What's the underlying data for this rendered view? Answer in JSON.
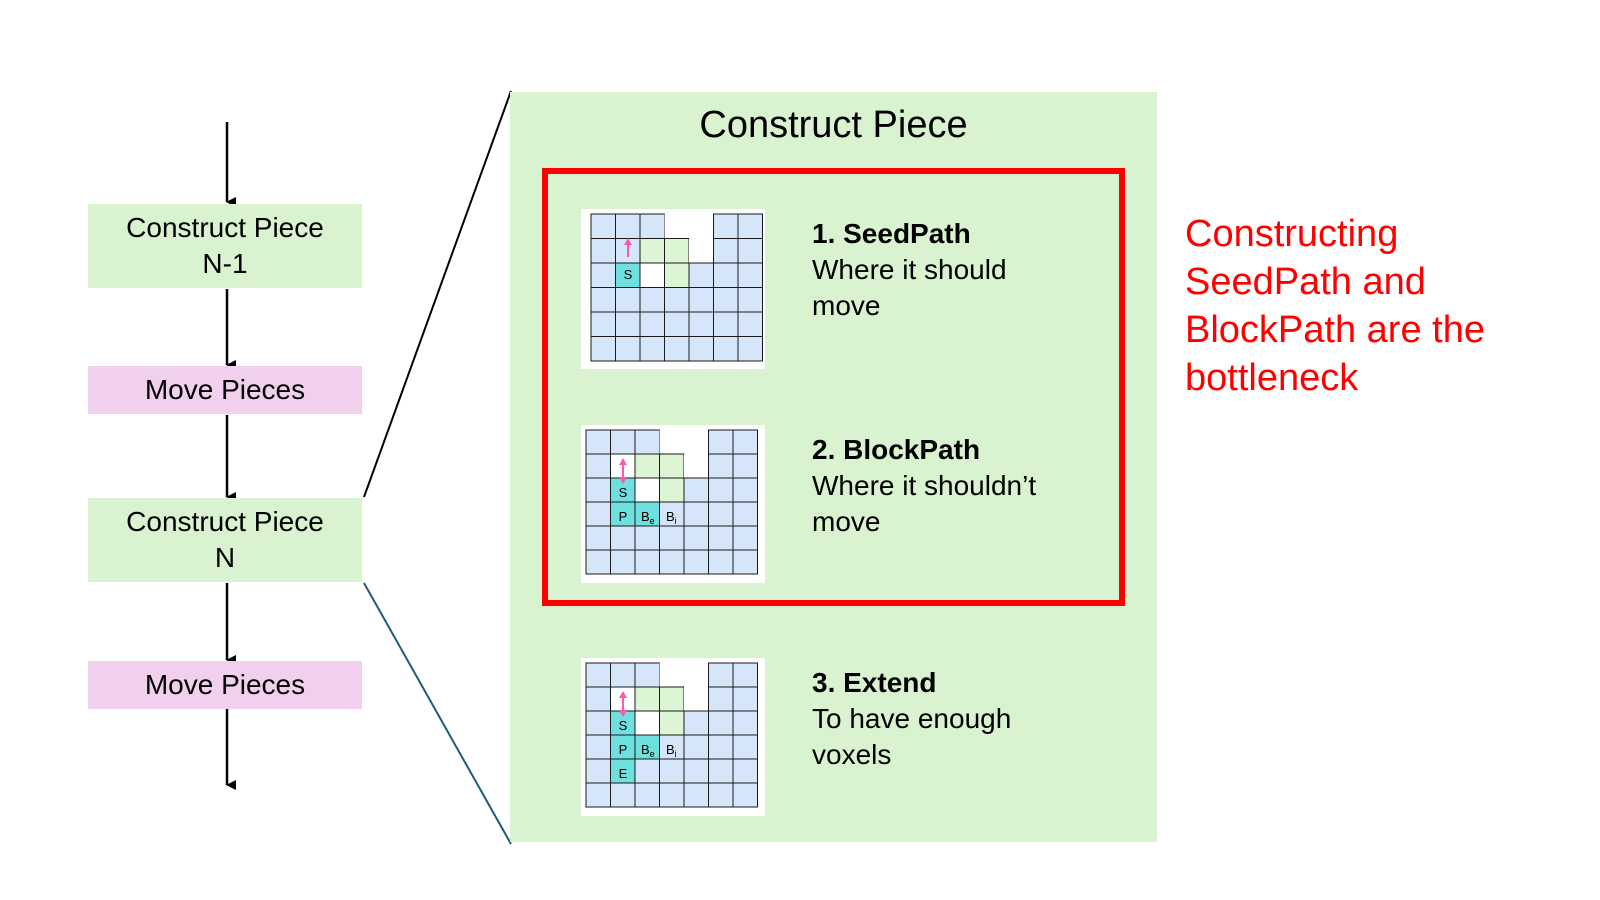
{
  "flow": [
    {
      "label": "Construct Piece\nN-1",
      "kind": "construct"
    },
    {
      "label": "Move Pieces",
      "kind": "move"
    },
    {
      "label": "Construct Piece\nN",
      "kind": "construct"
    },
    {
      "label": "Move Pieces",
      "kind": "move"
    }
  ],
  "panel": {
    "title": "Construct Piece",
    "steps": [
      {
        "title": "1. SeedPath",
        "desc_line1": "Where it should",
        "desc_line2": "move"
      },
      {
        "title": "2. BlockPath",
        "desc_line1": "Where it shouldn’t",
        "desc_line2": "move"
      },
      {
        "title": "3. Extend",
        "desc_line1": "To have enough",
        "desc_line2": "voxels"
      }
    ]
  },
  "callout": {
    "line1": "Constructing",
    "line2": "SeedPath and",
    "line3": "BlockPath are the",
    "line4": "bottleneck"
  },
  "grid_labels": {
    "seed": "S",
    "path": "P",
    "block_e": "B",
    "block_e_sub": "e",
    "block_i": "B",
    "block_i_sub": "i",
    "extend": "E"
  },
  "colors": {
    "construct_bg": "#d9f2d0",
    "move_bg": "#f1d0ee",
    "highlight": "#ff0000",
    "cell_blue": "#d6e6fa",
    "cell_green": "#dcf5d4",
    "cell_cyan": "#6ee0df",
    "arrow_pink": "#ff59a8",
    "connector_dark": "#1f5c7a"
  }
}
